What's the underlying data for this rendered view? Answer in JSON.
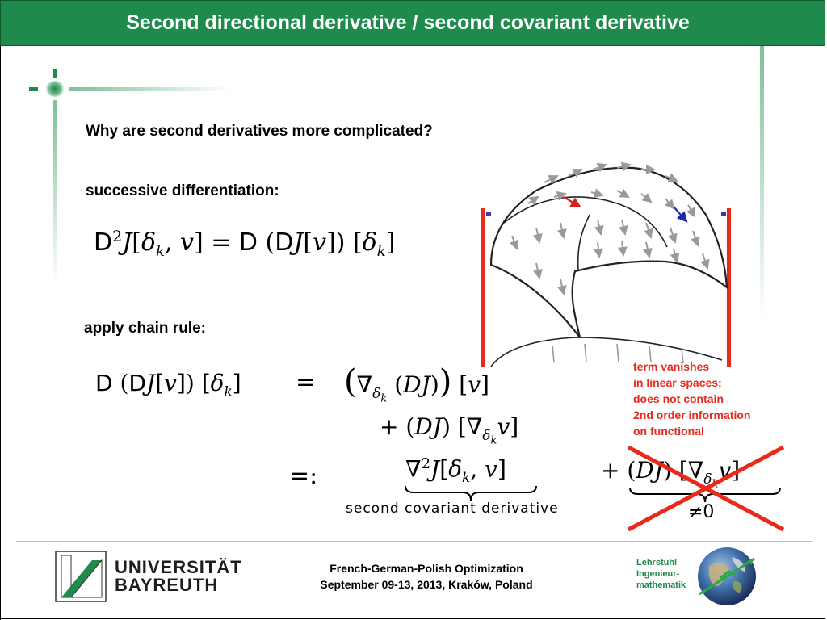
{
  "slide": {
    "title": "Second directional derivative / second covariant derivative"
  },
  "content": {
    "question": "Why are second derivatives more complicated?",
    "successive_label": "successive differentiation:",
    "chain_label": "apply chain rule:",
    "underbrace_label": "second covariant derivative",
    "neq_zero": "≠0"
  },
  "annotation": {
    "lines": [
      "term vanishes",
      "in linear spaces;",
      "does not contain",
      "2nd order information",
      "on functional"
    ],
    "color": "#e8291c"
  },
  "footer": {
    "conference_line1": "French-German-Polish Optimization",
    "conference_line2": "September 09-13, 2013, Kraków, Poland",
    "university_line1": "UNIVERSITÄT",
    "university_line2": "BAYREUTH",
    "chair_line1": "Lehrstuhl",
    "chair_line2": "Ingenieur-",
    "chair_line3": "mathematik"
  },
  "colors": {
    "title_bar": "#1e8a4c",
    "accent_green": "#1e8a4c",
    "annotation_red": "#e8291c"
  }
}
